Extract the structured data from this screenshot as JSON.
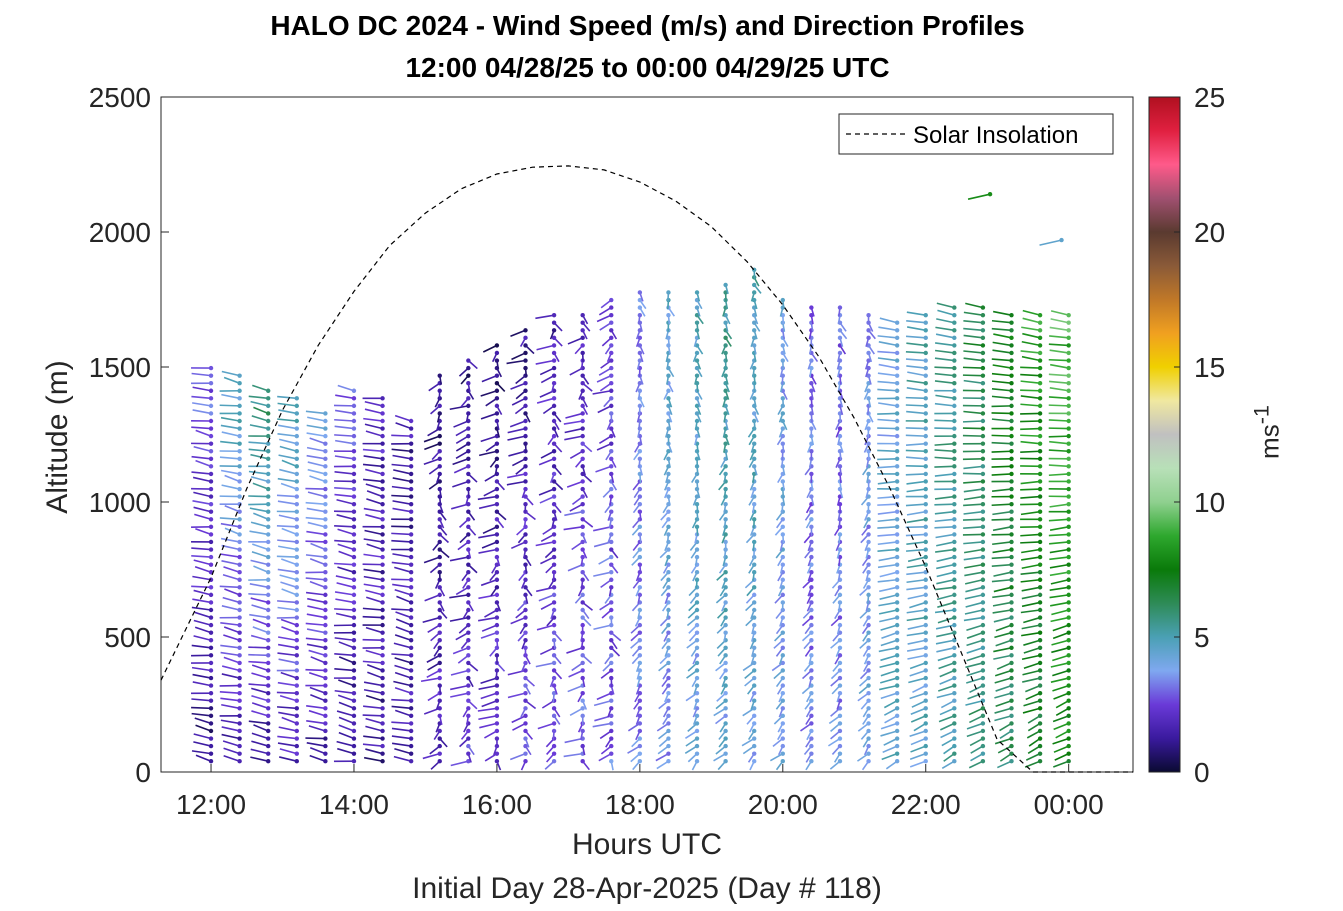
{
  "chart_data": {
    "type": "quiver",
    "title": "HALO DC 2024 - Wind Speed (m/s) and Direction Profiles",
    "subtitle": "12:00 04/28/25 to 00:00 04/29/25  UTC",
    "xlabel": "Hours UTC",
    "xlabel2": "Initial Day 28-Apr-2025 (Day # 118)",
    "ylabel": "Altitude (m)",
    "xlim": [
      11.3,
      24.9
    ],
    "ylim": [
      0,
      2500
    ],
    "xticks": [
      12,
      14,
      16,
      18,
      20,
      22,
      24
    ],
    "xtick_labels": [
      "12:00",
      "14:00",
      "16:00",
      "18:00",
      "20:00",
      "22:00",
      "00:00"
    ],
    "yticks": [
      0,
      500,
      1000,
      1500,
      2000,
      2500
    ],
    "ytick_labels": [
      "0",
      "500",
      "1000",
      "1500",
      "2000",
      "2500"
    ],
    "legend": {
      "entries": [
        "Solar Insolation"
      ],
      "position": "top-right",
      "style": "dashed black"
    },
    "colorbar": {
      "label": "ms",
      "label_exponent": "-1",
      "range": [
        0,
        25
      ],
      "ticks": [
        0,
        5,
        10,
        15,
        20,
        25
      ],
      "tick_labels": [
        "0",
        "5",
        "10",
        "15",
        "20",
        "25"
      ],
      "colormap": [
        "#0a0a32",
        "#3a1a9e",
        "#6a3ad8",
        "#7fa8f0",
        "#4aa0b4",
        "#2e8b57",
        "#0a7a0a",
        "#2ea82e",
        "#8fd08f",
        "#b8e0b8",
        "#c0c0c0",
        "#f0e8a0",
        "#f0d000",
        "#f0a020",
        "#c07828",
        "#8a5a38",
        "#5a3a30",
        "#a05070",
        "#ff5a8a",
        "#e02040",
        "#b01020"
      ]
    },
    "solar_insolation": {
      "x": [
        11.3,
        12.0,
        12.5,
        13.0,
        13.5,
        14.0,
        14.5,
        15.0,
        15.5,
        16.0,
        16.5,
        17.0,
        17.5,
        18.0,
        18.5,
        19.0,
        19.5,
        20.0,
        20.5,
        21.0,
        21.5,
        22.0,
        22.5,
        23.0,
        23.5,
        23.9,
        24.9
      ],
      "y": [
        340,
        720,
        1050,
        1340,
        1580,
        1780,
        1950,
        2070,
        2160,
        2215,
        2240,
        2245,
        2230,
        2185,
        2115,
        2020,
        1890,
        1730,
        1540,
        1310,
        1050,
        760,
        440,
        120,
        0,
        0,
        0
      ]
    },
    "vectors_note": "wind barbs at each profile time/altitude; summary per profile column",
    "profile_times_h": [
      12.0,
      12.4,
      12.8,
      13.2,
      13.6,
      14.0,
      14.4,
      14.8,
      15.2,
      15.6,
      16.0,
      16.4,
      16.8,
      17.2,
      17.6,
      18.0,
      18.4,
      18.8,
      19.2,
      19.6,
      20.0,
      20.4,
      20.8,
      21.2,
      21.6,
      22.0,
      22.4,
      22.8,
      23.2,
      23.6,
      24.0
    ],
    "profile_top_m": [
      1520,
      1480,
      1420,
      1400,
      1350,
      1420,
      1400,
      1300,
      1480,
      1550,
      1600,
      1640,
      1700,
      1700,
      1760,
      1780,
      1800,
      1800,
      1830,
      1860,
      1760,
      1740,
      1740,
      1700,
      1680,
      1700,
      1720,
      1730,
      1700,
      1700,
      1700
    ],
    "profile_speed_surface_ms": [
      1.0,
      1.2,
      1.0,
      1.5,
      1.2,
      1.0,
      1.3,
      1.5,
      2.0,
      2.5,
      2.5,
      2.8,
      3.0,
      3.0,
      3.0,
      3.2,
      3.5,
      3.8,
      4.0,
      4.0,
      3.8,
      3.5,
      3.5,
      4.0,
      4.5,
      4.5,
      5.0,
      5.5,
      6.0,
      6.5,
      7.5
    ],
    "profile_speed_top_ms": [
      3.0,
      5.0,
      6.0,
      5.0,
      4.0,
      3.0,
      2.0,
      1.5,
      1.0,
      1.0,
      1.0,
      1.2,
      1.5,
      2.0,
      2.5,
      3.5,
      4.5,
      5.0,
      5.5,
      5.0,
      4.0,
      3.0,
      3.0,
      3.5,
      4.0,
      5.0,
      5.5,
      6.5,
      7.5,
      8.5,
      9.0
    ]
  }
}
